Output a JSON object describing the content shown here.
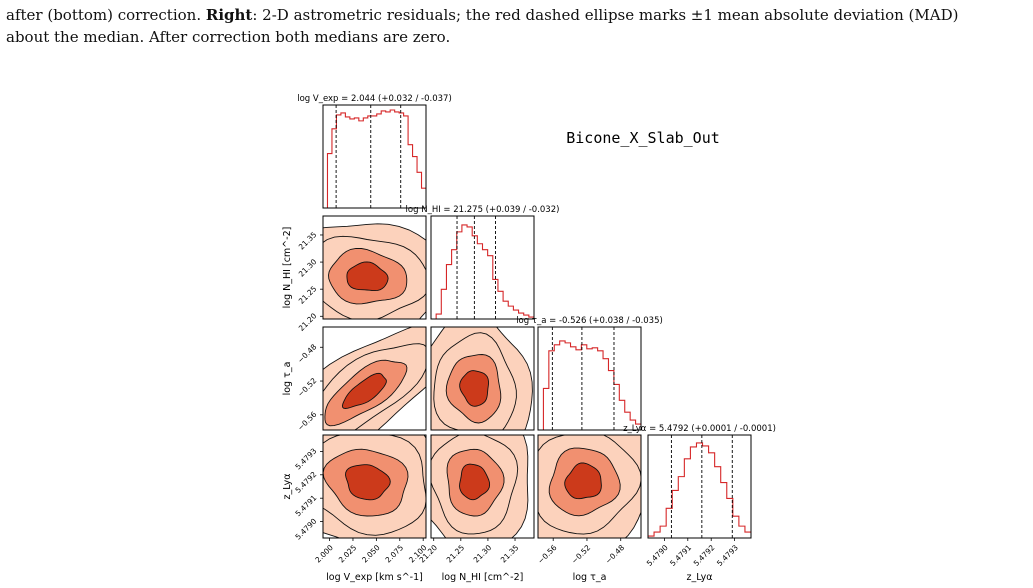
{
  "caption": {
    "line1_pre": "after (bottom) correction. ",
    "right_label": "Right",
    "line1_post": ": 2-D astrometric residuals; the red dashed ellipse marks ±1 mean absolute deviation (MAD)",
    "line2": "about the median. After correction both medians are zero."
  },
  "chart_data": {
    "type": "corner",
    "title": "Bicone_X_Slab_Out",
    "colors": {
      "hist": "#d62728",
      "contour_fills": [
        "#fcd2bc",
        "#f19070",
        "#cc3a1b"
      ],
      "contour_line": "#111111"
    },
    "parameters": [
      {
        "key": "logV",
        "axis_label": "log V_exp [km s^-1]",
        "title": "log V_exp = 2.044 (+0.032 / -0.037)",
        "median": 2.044,
        "err_plus": 0.032,
        "err_minus": 0.037,
        "quantiles": [
          2.007,
          2.044,
          2.076
        ],
        "range": [
          1.993,
          2.103
        ],
        "ticks": [
          2.0,
          2.025,
          2.05,
          2.075,
          2.1
        ],
        "tick_labels": [
          "2.000",
          "2.025",
          "2.050",
          "2.075",
          "2.100"
        ],
        "hist": [
          0.0,
          0.55,
          0.8,
          0.94,
          0.96,
          0.92,
          0.9,
          0.91,
          0.88,
          0.91,
          0.93,
          0.93,
          0.95,
          0.98,
          0.97,
          0.99,
          0.97,
          0.96,
          0.93,
          0.64,
          0.52,
          0.36,
          0.2
        ]
      },
      {
        "key": "logNHI",
        "axis_label": "log N_HI [cm^-2]",
        "title": "log N_HI = 21.275 (+0.039 / -0.032)",
        "median": 21.275,
        "err_plus": 0.039,
        "err_minus": 0.032,
        "quantiles": [
          21.243,
          21.275,
          21.314
        ],
        "range": [
          21.195,
          21.385
        ],
        "ticks": [
          21.2,
          21.25,
          21.3,
          21.35
        ],
        "tick_labels": [
          "21.20",
          "21.25",
          "21.30",
          "21.35"
        ],
        "hist": [
          0.0,
          0.05,
          0.3,
          0.55,
          0.7,
          0.88,
          0.95,
          0.93,
          0.84,
          0.76,
          0.7,
          0.64,
          0.4,
          0.28,
          0.18,
          0.13,
          0.09,
          0.06,
          0.04,
          0.02
        ]
      },
      {
        "key": "logtau",
        "axis_label": "log τ_a",
        "title": "log τ_a = -0.526 (+0.038 / -0.035)",
        "median": -0.526,
        "err_plus": 0.038,
        "err_minus": 0.035,
        "quantiles": [
          -0.561,
          -0.526,
          -0.488
        ],
        "range": [
          -0.578,
          -0.456
        ],
        "ticks": [
          -0.56,
          -0.52,
          -0.48
        ],
        "tick_labels": [
          "−0.56",
          "−0.52",
          "−0.48"
        ],
        "hist": [
          0.0,
          0.42,
          0.8,
          0.86,
          0.9,
          0.88,
          0.84,
          0.81,
          0.86,
          0.82,
          0.83,
          0.8,
          0.72,
          0.6,
          0.46,
          0.3,
          0.18,
          0.1,
          0.06
        ]
      },
      {
        "key": "z",
        "axis_label": "z_Lyα",
        "title": "z_Lyα = 5.4792 (+0.0001 / -0.0001)",
        "median": 5.4792,
        "err_plus": 0.0001,
        "err_minus": 0.0001,
        "quantiles": [
          5.47903,
          5.47916,
          5.47929
        ],
        "range": [
          5.47893,
          5.47937
        ],
        "ticks": [
          5.479,
          5.4791,
          5.4792,
          5.4793
        ],
        "tick_labels": [
          "5.4790",
          "5.4791",
          "5.4792",
          "5.4793"
        ],
        "hist": [
          0.02,
          0.06,
          0.12,
          0.3,
          0.48,
          0.62,
          0.8,
          0.92,
          0.96,
          0.93,
          0.86,
          0.72,
          0.56,
          0.4,
          0.22,
          0.12,
          0.06
        ]
      }
    ],
    "contour_levels": [
      "0.5σ",
      "1σ",
      "1.5σ",
      "2σ"
    ],
    "covariances": [
      {
        "pair": [
          "logV",
          "logNHI"
        ],
        "center": [
          2.04,
          21.272
        ],
        "rx": 0.044,
        "ry": 0.052,
        "corr": -0.08
      },
      {
        "pair": [
          "logV",
          "logtau"
        ],
        "center": [
          2.038,
          -0.532
        ],
        "rx": 0.046,
        "ry": 0.04,
        "corr": 0.72
      },
      {
        "pair": [
          "logNHI",
          "logtau"
        ],
        "center": [
          21.276,
          -0.528
        ],
        "rx": 0.052,
        "ry": 0.042,
        "corr": -0.05
      },
      {
        "pair": [
          "logV",
          "z"
        ],
        "center": [
          2.04,
          5.47917
        ],
        "rx": 0.046,
        "ry": 0.00015,
        "corr": -0.12
      },
      {
        "pair": [
          "logNHI",
          "z"
        ],
        "center": [
          21.274,
          5.47917
        ],
        "rx": 0.054,
        "ry": 0.00015,
        "corr": -0.02
      },
      {
        "pair": [
          "logtau",
          "z"
        ],
        "center": [
          -0.524,
          5.47917
        ],
        "rx": 0.043,
        "ry": 0.00015,
        "corr": 0.05
      }
    ]
  }
}
